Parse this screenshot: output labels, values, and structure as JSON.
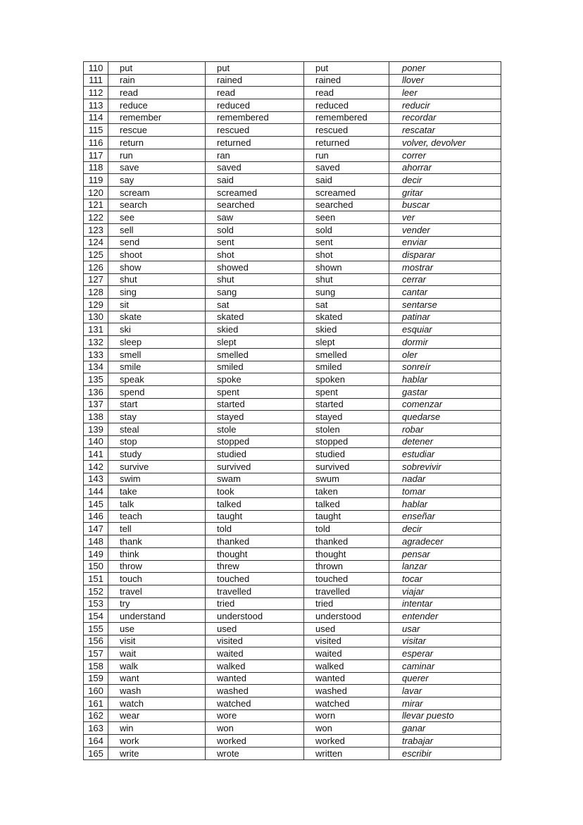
{
  "table": {
    "rows": [
      [
        "110",
        "put",
        "put",
        "put",
        "poner"
      ],
      [
        "111",
        "rain",
        "rained",
        "rained",
        "llover"
      ],
      [
        "112",
        "read",
        "read",
        "read",
        "leer"
      ],
      [
        "113",
        "reduce",
        "reduced",
        "reduced",
        "reducir"
      ],
      [
        "114",
        "remember",
        "remembered",
        "remembered",
        "recordar"
      ],
      [
        "115",
        "rescue",
        "rescued",
        "rescued",
        "rescatar"
      ],
      [
        "116",
        "return",
        "returned",
        "returned",
        "volver, devolver"
      ],
      [
        "117",
        "run",
        "ran",
        "run",
        "correr"
      ],
      [
        "118",
        "save",
        "saved",
        "saved",
        "ahorrar"
      ],
      [
        "119",
        "say",
        "said",
        "said",
        "decir"
      ],
      [
        "120",
        "scream",
        "screamed",
        "screamed",
        "gritar"
      ],
      [
        "121",
        "search",
        "searched",
        "searched",
        "buscar"
      ],
      [
        "122",
        "see",
        "saw",
        "seen",
        "ver"
      ],
      [
        "123",
        "sell",
        "sold",
        "sold",
        "vender"
      ],
      [
        "124",
        "send",
        "sent",
        "sent",
        "enviar"
      ],
      [
        "125",
        "shoot",
        "shot",
        "shot",
        "disparar"
      ],
      [
        "126",
        "show",
        "showed",
        "shown",
        "mostrar"
      ],
      [
        "127",
        "shut",
        "shut",
        "shut",
        "cerrar"
      ],
      [
        "128",
        "sing",
        "sang",
        "sung",
        "cantar"
      ],
      [
        "129",
        "sit",
        "sat",
        "sat",
        "sentarse"
      ],
      [
        "130",
        "skate",
        "skated",
        "skated",
        "patinar"
      ],
      [
        "131",
        "ski",
        "skied",
        "skied",
        "esquiar"
      ],
      [
        "132",
        "sleep",
        "slept",
        "slept",
        "dormir"
      ],
      [
        "133",
        "smell",
        "smelled",
        "smelled",
        "oler"
      ],
      [
        "134",
        "smile",
        "smiled",
        "smiled",
        "sonreír"
      ],
      [
        "135",
        "speak",
        "spoke",
        "spoken",
        "hablar"
      ],
      [
        "136",
        "spend",
        "spent",
        "spent",
        "gastar"
      ],
      [
        "137",
        "start",
        "started",
        "started",
        "comenzar"
      ],
      [
        "138",
        "stay",
        "stayed",
        "stayed",
        "quedarse"
      ],
      [
        "139",
        "steal",
        "stole",
        "stolen",
        "robar"
      ],
      [
        "140",
        "stop",
        "stopped",
        "stopped",
        "detener"
      ],
      [
        "141",
        "study",
        "studied",
        "studied",
        "estudiar"
      ],
      [
        "142",
        "survive",
        "survived",
        "survived",
        "sobrevivir"
      ],
      [
        "143",
        "swim",
        "swam",
        "swum",
        "nadar"
      ],
      [
        "144",
        "take",
        "took",
        "taken",
        "tomar"
      ],
      [
        "145",
        "talk",
        "talked",
        "talked",
        "hablar"
      ],
      [
        "146",
        "teach",
        "taught",
        "taught",
        "enseñar"
      ],
      [
        "147",
        "tell",
        "told",
        "told",
        "decir"
      ],
      [
        "148",
        "thank",
        "thanked",
        "thanked",
        "agradecer"
      ],
      [
        "149",
        "think",
        "thought",
        "thought",
        "pensar"
      ],
      [
        "150",
        "throw",
        "threw",
        "thrown",
        "lanzar"
      ],
      [
        "151",
        "touch",
        "touched",
        "touched",
        "tocar"
      ],
      [
        "152",
        "travel",
        "travelled",
        "travelled",
        "viajar"
      ],
      [
        "153",
        "try",
        "tried",
        "tried",
        "intentar"
      ],
      [
        "154",
        "understand",
        "understood",
        "understood",
        "entender"
      ],
      [
        "155",
        "use",
        "used",
        "used",
        "usar"
      ],
      [
        "156",
        "visit",
        "visited",
        "visited",
        "visitar"
      ],
      [
        "157",
        "wait",
        "waited",
        "waited",
        "esperar"
      ],
      [
        "158",
        "walk",
        "walked",
        "walked",
        "caminar"
      ],
      [
        "159",
        "want",
        "wanted",
        "wanted",
        "querer"
      ],
      [
        "160",
        "wash",
        "washed",
        "washed",
        "lavar"
      ],
      [
        "161",
        "watch",
        "watched",
        "watched",
        "mirar"
      ],
      [
        "162",
        "wear",
        "wore",
        "worn",
        "llevar puesto"
      ],
      [
        "163",
        "win",
        "won",
        "won",
        "ganar"
      ],
      [
        "164",
        "work",
        "worked",
        "worked",
        "trabajar"
      ],
      [
        "165",
        "write",
        "wrote",
        "written",
        "escribir"
      ]
    ]
  }
}
